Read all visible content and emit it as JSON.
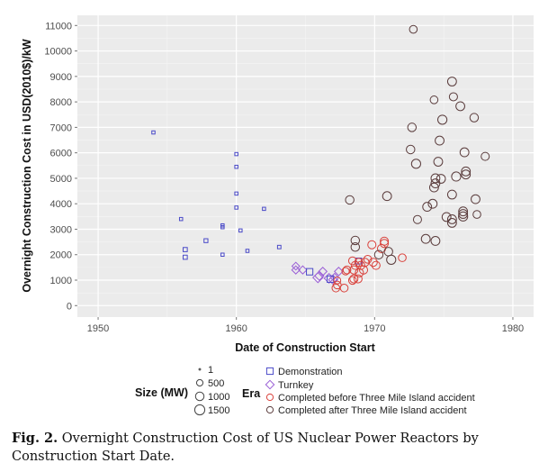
{
  "chart_data": {
    "type": "scatter",
    "xlabel": "Date of Construction Start",
    "ylabel": "Overnight Construction Cost in USD(2010$)/kW",
    "xlim": [
      1948.5,
      1981.5
    ],
    "ylim": [
      -450,
      11400
    ],
    "xticks": [
      1950,
      1960,
      1970,
      1980
    ],
    "yticks": [
      0,
      1000,
      2000,
      3000,
      4000,
      5000,
      6000,
      7000,
      8000,
      9000,
      10000,
      11000
    ],
    "grid": true,
    "legend_size": {
      "title": "Size (MW)",
      "entries": [
        1,
        500,
        1000,
        1500
      ]
    },
    "legend_era": {
      "title": "Era",
      "entries": [
        {
          "key": "D",
          "label": "Demonstration",
          "shape": "square",
          "color": "#4a4ac8"
        },
        {
          "key": "T",
          "label": "Turnkey",
          "shape": "diamond",
          "color": "#9a5fd6"
        },
        {
          "key": "B",
          "label": "Completed before Three Mile Island accident",
          "shape": "circle",
          "color": "#d9403a"
        },
        {
          "key": "A",
          "label": "Completed after Three Mile Island accident",
          "shape": "circle",
          "color": "#5a3c3c"
        }
      ]
    },
    "points": [
      {
        "x": 1954.0,
        "y": 6800,
        "era": "D",
        "size": 60
      },
      {
        "x": 1960.0,
        "y": 5950,
        "era": "D",
        "size": 60
      },
      {
        "x": 1960.0,
        "y": 5450,
        "era": "D",
        "size": 60
      },
      {
        "x": 1960.0,
        "y": 4400,
        "era": "D",
        "size": 60
      },
      {
        "x": 1960.0,
        "y": 3850,
        "era": "D",
        "size": 60
      },
      {
        "x": 1962.0,
        "y": 3800,
        "era": "D",
        "size": 60
      },
      {
        "x": 1956.0,
        "y": 3400,
        "era": "D",
        "size": 60
      },
      {
        "x": 1959.0,
        "y": 3150,
        "era": "D",
        "size": 60
      },
      {
        "x": 1959.0,
        "y": 3080,
        "era": "D",
        "size": 60
      },
      {
        "x": 1960.3,
        "y": 2950,
        "era": "D",
        "size": 60
      },
      {
        "x": 1957.8,
        "y": 2550,
        "era": "D",
        "size": 120
      },
      {
        "x": 1956.3,
        "y": 2200,
        "era": "D",
        "size": 150
      },
      {
        "x": 1963.1,
        "y": 2300,
        "era": "D",
        "size": 80
      },
      {
        "x": 1960.8,
        "y": 2150,
        "era": "D",
        "size": 60
      },
      {
        "x": 1959.0,
        "y": 2000,
        "era": "D",
        "size": 60
      },
      {
        "x": 1956.3,
        "y": 1900,
        "era": "D",
        "size": 150
      },
      {
        "x": 1964.3,
        "y": 1550,
        "era": "T",
        "size": 400
      },
      {
        "x": 1964.3,
        "y": 1400,
        "era": "T",
        "size": 450
      },
      {
        "x": 1964.8,
        "y": 1400,
        "era": "T",
        "size": 450
      },
      {
        "x": 1965.3,
        "y": 1330,
        "era": "D",
        "size": 500
      },
      {
        "x": 1966.25,
        "y": 1340,
        "era": "T",
        "size": 500
      },
      {
        "x": 1966.0,
        "y": 1170,
        "era": "T",
        "size": 600
      },
      {
        "x": 1965.9,
        "y": 1100,
        "era": "T",
        "size": 800
      },
      {
        "x": 1966.7,
        "y": 1070,
        "era": "T",
        "size": 700
      },
      {
        "x": 1967.0,
        "y": 1010,
        "era": "T",
        "size": 600
      },
      {
        "x": 1967.4,
        "y": 1340,
        "era": "T",
        "size": 500
      },
      {
        "x": 1967.1,
        "y": 1100,
        "era": "T",
        "size": 500
      },
      {
        "x": 1966.8,
        "y": 1040,
        "era": "D",
        "size": 500
      },
      {
        "x": 1968.85,
        "y": 1750,
        "era": "D",
        "size": 400
      },
      {
        "x": 1967.3,
        "y": 810,
        "era": "B",
        "size": 800
      },
      {
        "x": 1967.2,
        "y": 690,
        "era": "B",
        "size": 800
      },
      {
        "x": 1967.8,
        "y": 690,
        "era": "B",
        "size": 800
      },
      {
        "x": 1967.3,
        "y": 990,
        "era": "B",
        "size": 600
      },
      {
        "x": 1968.0,
        "y": 1400,
        "era": "B",
        "size": 800
      },
      {
        "x": 1967.9,
        "y": 1350,
        "era": "B",
        "size": 700
      },
      {
        "x": 1968.5,
        "y": 1050,
        "era": "B",
        "size": 900
      },
      {
        "x": 1968.8,
        "y": 1050,
        "era": "B",
        "size": 900
      },
      {
        "x": 1968.4,
        "y": 990,
        "era": "B",
        "size": 800
      },
      {
        "x": 1968.4,
        "y": 1760,
        "era": "B",
        "size": 800
      },
      {
        "x": 1968.85,
        "y": 1700,
        "era": "B",
        "size": 900
      },
      {
        "x": 1969.0,
        "y": 1580,
        "era": "B",
        "size": 900
      },
      {
        "x": 1969.2,
        "y": 1400,
        "era": "B",
        "size": 900
      },
      {
        "x": 1968.6,
        "y": 1580,
        "era": "B",
        "size": 900
      },
      {
        "x": 1968.5,
        "y": 1400,
        "era": "B",
        "size": 900
      },
      {
        "x": 1968.9,
        "y": 1290,
        "era": "B",
        "size": 900
      },
      {
        "x": 1969.3,
        "y": 1700,
        "era": "B",
        "size": 900
      },
      {
        "x": 1969.9,
        "y": 1700,
        "era": "B",
        "size": 900
      },
      {
        "x": 1970.1,
        "y": 1580,
        "era": "B",
        "size": 900
      },
      {
        "x": 1969.5,
        "y": 1820,
        "era": "B",
        "size": 800
      },
      {
        "x": 1969.8,
        "y": 2390,
        "era": "B",
        "size": 900
      },
      {
        "x": 1970.5,
        "y": 2240,
        "era": "B",
        "size": 900
      },
      {
        "x": 1970.7,
        "y": 2530,
        "era": "B",
        "size": 900
      },
      {
        "x": 1970.7,
        "y": 2440,
        "era": "B",
        "size": 900
      },
      {
        "x": 1972.0,
        "y": 1880,
        "era": "B",
        "size": 800
      },
      {
        "x": 1968.6,
        "y": 2300,
        "era": "A",
        "size": 1000
      },
      {
        "x": 1968.6,
        "y": 2560,
        "era": "A",
        "size": 1000
      },
      {
        "x": 1970.3,
        "y": 2000,
        "era": "A",
        "size": 1000
      },
      {
        "x": 1971.0,
        "y": 2120,
        "era": "A",
        "size": 1000
      },
      {
        "x": 1971.2,
        "y": 1800,
        "era": "A",
        "size": 1200
      },
      {
        "x": 1972.8,
        "y": 10850,
        "era": "A",
        "size": 800
      },
      {
        "x": 1975.6,
        "y": 8800,
        "era": "A",
        "size": 1100
      },
      {
        "x": 1975.7,
        "y": 8200,
        "era": "A",
        "size": 900
      },
      {
        "x": 1974.3,
        "y": 8080,
        "era": "A",
        "size": 800
      },
      {
        "x": 1976.2,
        "y": 7830,
        "era": "A",
        "size": 1100
      },
      {
        "x": 1974.9,
        "y": 7300,
        "era": "A",
        "size": 1200
      },
      {
        "x": 1977.2,
        "y": 7380,
        "era": "A",
        "size": 1000
      },
      {
        "x": 1972.7,
        "y": 7000,
        "era": "A",
        "size": 1000
      },
      {
        "x": 1974.7,
        "y": 6480,
        "era": "A",
        "size": 1100
      },
      {
        "x": 1972.6,
        "y": 6130,
        "era": "A",
        "size": 1000
      },
      {
        "x": 1976.5,
        "y": 6020,
        "era": "A",
        "size": 1100
      },
      {
        "x": 1978.0,
        "y": 5860,
        "era": "A",
        "size": 900
      },
      {
        "x": 1973.0,
        "y": 5570,
        "era": "A",
        "size": 1200
      },
      {
        "x": 1974.6,
        "y": 5650,
        "era": "A",
        "size": 1100
      },
      {
        "x": 1976.6,
        "y": 5270,
        "era": "A",
        "size": 1100
      },
      {
        "x": 1976.6,
        "y": 5150,
        "era": "A",
        "size": 1100
      },
      {
        "x": 1975.9,
        "y": 5070,
        "era": "A",
        "size": 1200
      },
      {
        "x": 1974.4,
        "y": 5000,
        "era": "A",
        "size": 1100
      },
      {
        "x": 1974.8,
        "y": 4980,
        "era": "A",
        "size": 1100
      },
      {
        "x": 1974.4,
        "y": 4800,
        "era": "A",
        "size": 1100
      },
      {
        "x": 1974.3,
        "y": 4640,
        "era": "A",
        "size": 1100
      },
      {
        "x": 1968.2,
        "y": 4150,
        "era": "A",
        "size": 1000
      },
      {
        "x": 1970.9,
        "y": 4300,
        "era": "A",
        "size": 1100
      },
      {
        "x": 1975.6,
        "y": 4360,
        "era": "A",
        "size": 1100
      },
      {
        "x": 1977.3,
        "y": 4180,
        "era": "A",
        "size": 1100
      },
      {
        "x": 1974.2,
        "y": 4000,
        "era": "A",
        "size": 1100
      },
      {
        "x": 1973.8,
        "y": 3880,
        "era": "A",
        "size": 1100
      },
      {
        "x": 1976.4,
        "y": 3700,
        "era": "A",
        "size": 1100
      },
      {
        "x": 1976.4,
        "y": 3600,
        "era": "A",
        "size": 1100
      },
      {
        "x": 1976.4,
        "y": 3500,
        "era": "A",
        "size": 1200
      },
      {
        "x": 1977.4,
        "y": 3580,
        "era": "A",
        "size": 800
      },
      {
        "x": 1973.1,
        "y": 3380,
        "era": "A",
        "size": 900
      },
      {
        "x": 1975.2,
        "y": 3480,
        "era": "A",
        "size": 1100
      },
      {
        "x": 1975.6,
        "y": 3390,
        "era": "A",
        "size": 1100
      },
      {
        "x": 1975.6,
        "y": 3250,
        "era": "A",
        "size": 1100
      },
      {
        "x": 1973.7,
        "y": 2620,
        "era": "A",
        "size": 1100
      },
      {
        "x": 1974.4,
        "y": 2540,
        "era": "A",
        "size": 1100
      }
    ]
  },
  "caption": {
    "label": "Fig. 2.",
    "text": "Overnight Construction Cost of US Nuclear Power Reactors by Construction Start Date."
  }
}
